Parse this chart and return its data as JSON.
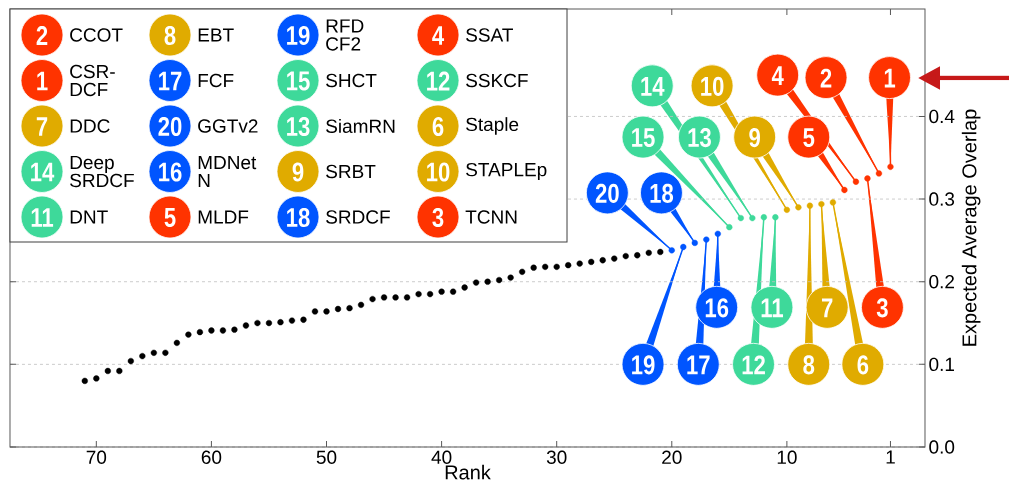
{
  "chart_data": {
    "type": "scatter",
    "xlabel": "Rank",
    "ylabel": "Expected Average Overlap",
    "xlim": [
      77.5,
      -2
    ],
    "ylim": [
      0,
      0.53
    ],
    "xticks": [
      70,
      60,
      50,
      40,
      30,
      20,
      10,
      1
    ],
    "yticks": [
      {
        "value": 0,
        "label": "0.0"
      },
      0.1,
      0.2,
      0.3,
      0.4
    ],
    "grid": "y",
    "legend": "top left",
    "marker": "circle",
    "series": [
      {
        "color": "#000000",
        "x": [
          21,
          22,
          23,
          24,
          25,
          26,
          27,
          28,
          29,
          30,
          31,
          32,
          33,
          34,
          35,
          36,
          37,
          38,
          39,
          40,
          41,
          42,
          43,
          44,
          45,
          46,
          47,
          48,
          49,
          50,
          51,
          52,
          53,
          54,
          55,
          56,
          57,
          58,
          59,
          60,
          61,
          62,
          63,
          64,
          65,
          66,
          67,
          68,
          69,
          70,
          71
        ],
        "values": [
          0.236,
          0.235,
          0.232,
          0.231,
          0.228,
          0.226,
          0.224,
          0.222,
          0.22,
          0.218,
          0.218,
          0.217,
          0.212,
          0.205,
          0.202,
          0.2,
          0.199,
          0.193,
          0.188,
          0.188,
          0.185,
          0.185,
          0.181,
          0.181,
          0.181,
          0.179,
          0.172,
          0.168,
          0.167,
          0.164,
          0.164,
          0.154,
          0.153,
          0.151,
          0.15,
          0.15,
          0.147,
          0.142,
          0.141,
          0.141,
          0.139,
          0.136,
          0.126,
          0.114,
          0.114,
          0.11,
          0.104,
          0.092,
          0.092,
          0.083,
          0.08
        ]
      },
      {
        "name": "CCOT",
        "color": "#ff3300",
        "x": [
          2
        ],
        "values": [
          0.331
        ]
      },
      {
        "name": "CSR-DCF",
        "color": "#ff3300",
        "x": [
          1
        ],
        "values": [
          0.339
        ]
      },
      {
        "name": "DDC",
        "color": "#e0ab00",
        "x": [
          7
        ],
        "values": [
          0.294
        ]
      },
      {
        "name": "Deep SRDCF",
        "color": "#3ed99a",
        "x": [
          14
        ],
        "values": [
          0.277
        ]
      },
      {
        "name": "DNT",
        "color": "#3ed99a",
        "x": [
          11
        ],
        "values": [
          0.278
        ]
      },
      {
        "name": "EBT",
        "color": "#e0ab00",
        "x": [
          8
        ],
        "values": [
          0.292
        ]
      },
      {
        "name": "FCF",
        "color": "#0055ff",
        "x": [
          17
        ],
        "values": [
          0.251
        ]
      },
      {
        "name": "GGTv2",
        "color": "#0055ff",
        "x": [
          20
        ],
        "values": [
          0.238
        ]
      },
      {
        "name": "MDNet N",
        "color": "#0055ff",
        "x": [
          16
        ],
        "values": [
          0.258
        ]
      },
      {
        "name": "MLDF",
        "color": "#ff3300",
        "x": [
          5
        ],
        "values": [
          0.311
        ]
      },
      {
        "name": "RFD CF2",
        "color": "#0055ff",
        "x": [
          19
        ],
        "values": [
          0.242
        ]
      },
      {
        "name": "SHCT",
        "color": "#3ed99a",
        "x": [
          15
        ],
        "values": [
          0.266
        ]
      },
      {
        "name": "SiamRN",
        "color": "#3ed99a",
        "x": [
          13
        ],
        "values": [
          0.277
        ]
      },
      {
        "name": "SRBT",
        "color": "#e0ab00",
        "x": [
          9
        ],
        "values": [
          0.29
        ]
      },
      {
        "name": "SRDCF",
        "color": "#0055ff",
        "x": [
          18
        ],
        "values": [
          0.247
        ]
      },
      {
        "name": "SSAT",
        "color": "#ff3300",
        "x": [
          4
        ],
        "values": [
          0.321
        ]
      },
      {
        "name": "SSKCF",
        "color": "#3ed99a",
        "x": [
          12
        ],
        "values": [
          0.278
        ]
      },
      {
        "name": "Staple",
        "color": "#e0ab00",
        "x": [
          6
        ],
        "values": [
          0.296
        ]
      },
      {
        "name": "STAPLEp",
        "color": "#e0ab00",
        "x": [
          10
        ],
        "values": [
          0.287
        ]
      },
      {
        "name": "TCNN",
        "color": "#ff3300",
        "x": [
          3
        ],
        "values": [
          0.325
        ]
      }
    ],
    "annotations": [
      {
        "text": "2",
        "x": 2,
        "y": 0.331
      },
      {
        "text": "1",
        "x": 1,
        "y": 0.339
      },
      {
        "text": "7",
        "x": 7,
        "y": 0.294
      },
      {
        "text": "14",
        "x": 14,
        "y": 0.277
      },
      {
        "text": "11",
        "x": 11,
        "y": 0.278
      },
      {
        "text": "8",
        "x": 8,
        "y": 0.292
      },
      {
        "text": "17",
        "x": 17,
        "y": 0.251
      },
      {
        "text": "20",
        "x": 20,
        "y": 0.238
      },
      {
        "text": "16",
        "x": 16,
        "y": 0.258
      },
      {
        "text": "5",
        "x": 5,
        "y": 0.311
      },
      {
        "text": "19",
        "x": 19,
        "y": 0.242
      },
      {
        "text": "15",
        "x": 15,
        "y": 0.266
      },
      {
        "text": "13",
        "x": 13,
        "y": 0.277
      },
      {
        "text": "9",
        "x": 9,
        "y": 0.29
      },
      {
        "text": "18",
        "x": 18,
        "y": 0.247
      },
      {
        "text": "4",
        "x": 4,
        "y": 0.321
      },
      {
        "text": "12",
        "x": 12,
        "y": 0.278
      },
      {
        "text": "6",
        "x": 6,
        "y": 0.296
      },
      {
        "text": "10",
        "x": 10,
        "y": 0.287
      },
      {
        "text": "3",
        "x": 3,
        "y": 0.325
      }
    ]
  }
}
